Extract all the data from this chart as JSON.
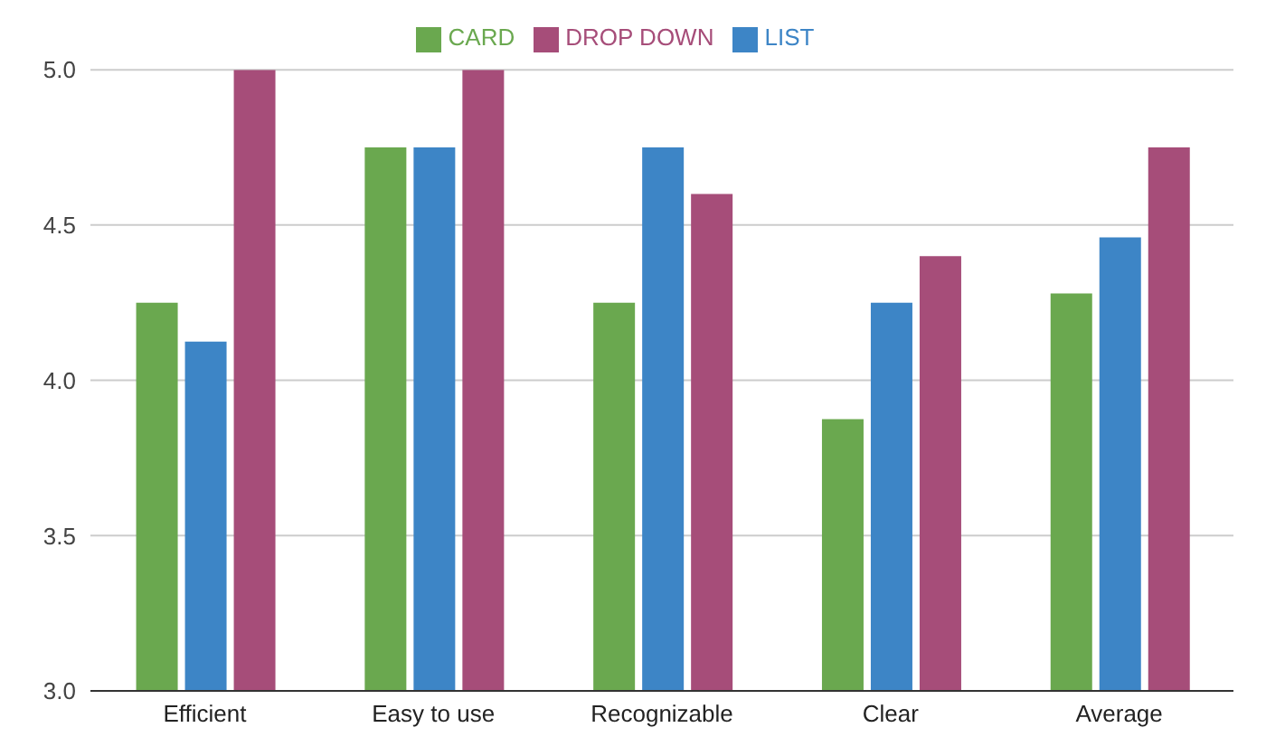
{
  "chart_data": {
    "type": "bar",
    "categories": [
      "Efficient",
      "Easy to use",
      "Recognizable",
      "Clear",
      "Average"
    ],
    "series": [
      {
        "name": "CARD",
        "color": "#6aa84f",
        "values": [
          4.25,
          4.75,
          4.25,
          3.875,
          4.28
        ]
      },
      {
        "name": "LIST",
        "color": "#3d85c6",
        "values": [
          4.125,
          4.75,
          4.75,
          4.25,
          4.46
        ]
      },
      {
        "name": "DROP DOWN",
        "color": "#a64d79",
        "values": [
          5.0,
          5.0,
          4.6,
          4.4,
          4.75
        ]
      }
    ],
    "ylim": [
      3,
      5
    ],
    "yticks": [
      {
        "value": 3,
        "label": "3.0"
      },
      {
        "value": 3.5,
        "label": "3.5"
      },
      {
        "value": 4,
        "label": "4.0"
      },
      {
        "value": 4.5,
        "label": "4.5"
      },
      {
        "value": 5,
        "label": "5.0"
      }
    ],
    "grid": "y",
    "legend": "top"
  }
}
